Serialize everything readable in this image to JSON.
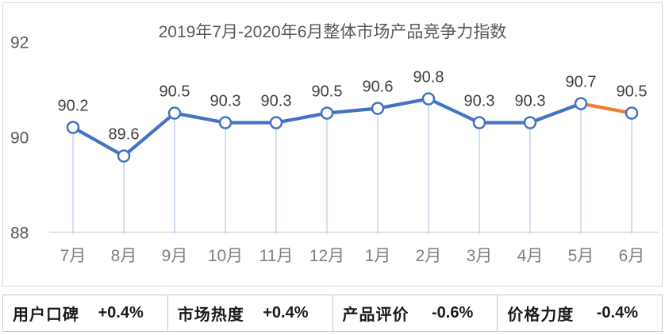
{
  "chart_data": {
    "type": "line",
    "title": "2019年7月-2020年6月整体市场产品竞争力指数",
    "categories": [
      "7月",
      "8月",
      "9月",
      "10月",
      "11月",
      "12月",
      "1月",
      "2月",
      "3月",
      "4月",
      "5月",
      "6月"
    ],
    "series": [
      {
        "name": "整体市场产品竞争力指数",
        "values": [
          90.2,
          89.6,
          90.5,
          90.3,
          90.3,
          90.5,
          90.6,
          90.8,
          90.3,
          90.3,
          90.7,
          90.5
        ]
      }
    ],
    "ylim": [
      88,
      92
    ],
    "yticks": [
      88,
      90,
      92
    ],
    "grid": false,
    "legend_position": "none",
    "data_labels_shown": true,
    "highlight": "last segment drawn in orange",
    "colors": {
      "line": "#4472C4",
      "last_segment": "#ED7D31",
      "marker_fill": "#FFFFFF",
      "marker_stroke": "#4472C4",
      "drop_line": "#C9D8EE",
      "axis_line": "#D9D9D9",
      "title_text": "#595959",
      "y_tick_text": "#595959",
      "x_tick_text": "#7F7F7F",
      "data_label_text": "#3F3F3F"
    }
  },
  "stats": {
    "cells": [
      {
        "label": "用户口碑",
        "value": "+0.4%"
      },
      {
        "label": "市场热度",
        "value": "+0.4%"
      },
      {
        "label": "产品评价",
        "value": "-0.6%"
      },
      {
        "label": "价格力度",
        "value": "-0.4%"
      }
    ]
  }
}
